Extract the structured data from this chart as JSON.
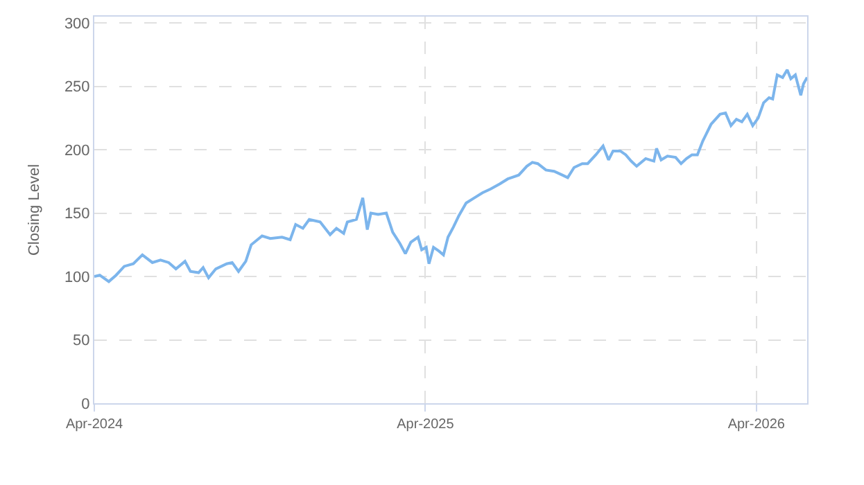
{
  "chart_data": {
    "type": "line",
    "ylabel": "Closing Level",
    "x": [
      "2024-04-01",
      "2024-04-07",
      "2024-04-17",
      "2024-04-25",
      "2024-05-04",
      "2024-05-14",
      "2024-05-24",
      "2024-06-04",
      "2024-06-13",
      "2024-06-22",
      "2024-06-30",
      "2024-07-10",
      "2024-07-16",
      "2024-07-25",
      "2024-07-30",
      "2024-08-05",
      "2024-08-13",
      "2024-08-25",
      "2024-08-31",
      "2024-09-07",
      "2024-09-15",
      "2024-09-21",
      "2024-10-03",
      "2024-10-12",
      "2024-10-25",
      "2024-11-03",
      "2024-11-09",
      "2024-11-17",
      "2024-11-24",
      "2024-12-06",
      "2024-12-17",
      "2024-12-24",
      "2025-01-01",
      "2025-01-05",
      "2025-01-15",
      "2025-01-22",
      "2025-01-27",
      "2025-01-31",
      "2025-02-08",
      "2025-02-17",
      "2025-02-24",
      "2025-03-04",
      "2025-03-10",
      "2025-03-16",
      "2025-03-24",
      "2025-03-28",
      "2025-04-02",
      "2025-04-05",
      "2025-04-10",
      "2025-04-16",
      "2025-04-21",
      "2025-04-26",
      "2025-05-02",
      "2025-05-08",
      "2025-05-16",
      "2025-05-25",
      "2025-06-03",
      "2025-06-12",
      "2025-06-22",
      "2025-07-01",
      "2025-07-13",
      "2025-07-22",
      "2025-07-28",
      "2025-08-03",
      "2025-08-12",
      "2025-08-21",
      "2025-08-30",
      "2025-09-05",
      "2025-09-12",
      "2025-09-21",
      "2025-09-27",
      "2025-10-06",
      "2025-10-14",
      "2025-10-20",
      "2025-10-25",
      "2025-11-02",
      "2025-11-08",
      "2025-11-14",
      "2025-11-20",
      "2025-11-30",
      "2025-12-09",
      "2025-12-12",
      "2025-12-17",
      "2025-12-24",
      "2026-01-02",
      "2026-01-08",
      "2026-01-14",
      "2026-01-20",
      "2026-01-26",
      "2026-02-01",
      "2026-02-10",
      "2026-02-20",
      "2026-02-26",
      "2026-03-04",
      "2026-03-10",
      "2026-03-16",
      "2026-03-22",
      "2026-03-28",
      "2026-04-03",
      "2026-04-09",
      "2026-04-15",
      "2026-04-19",
      "2026-04-24",
      "2026-04-30",
      "2026-05-05",
      "2026-05-09",
      "2026-05-14",
      "2026-05-20",
      "2026-05-23",
      "2026-05-27"
    ],
    "series": [
      {
        "color": "#7cb5ec",
        "values": [
          100,
          101,
          96,
          101,
          108,
          110,
          117,
          111,
          113,
          111,
          106,
          112,
          104,
          103,
          107,
          99,
          106,
          110,
          111,
          104,
          112,
          125,
          132,
          130,
          131,
          129,
          141,
          138,
          145,
          143,
          133,
          138,
          134,
          143,
          145,
          162,
          137,
          150,
          149,
          150,
          135,
          126,
          118,
          127,
          131,
          121,
          123,
          110,
          123,
          120,
          117,
          131,
          139,
          148,
          158,
          162,
          166,
          169,
          173,
          177,
          180,
          187,
          190,
          189,
          184,
          183,
          180,
          178,
          186,
          189,
          189,
          196,
          203,
          192,
          199,
          199,
          196,
          191,
          187,
          193,
          191,
          201,
          192,
          195,
          194,
          189,
          193,
          196,
          196,
          207,
          220,
          228,
          229,
          219,
          224,
          222,
          228,
          219,
          225,
          237,
          241,
          240,
          259,
          257,
          263,
          256,
          259,
          243,
          252,
          257
        ]
      }
    ],
    "xlim": [
      "2024-04-01",
      "2026-05-27"
    ],
    "xticks": [
      {
        "value": "2024-04-01",
        "label": "Apr-2024"
      },
      {
        "value": "2025-04-01",
        "label": "Apr-2025"
      },
      {
        "value": "2026-04-01",
        "label": "Apr-2026"
      }
    ],
    "ylim": [
      0,
      305
    ],
    "yticks": [
      0,
      50,
      100,
      150,
      200,
      250,
      300
    ],
    "grid": true,
    "marker": "none",
    "line_style": "solid"
  }
}
